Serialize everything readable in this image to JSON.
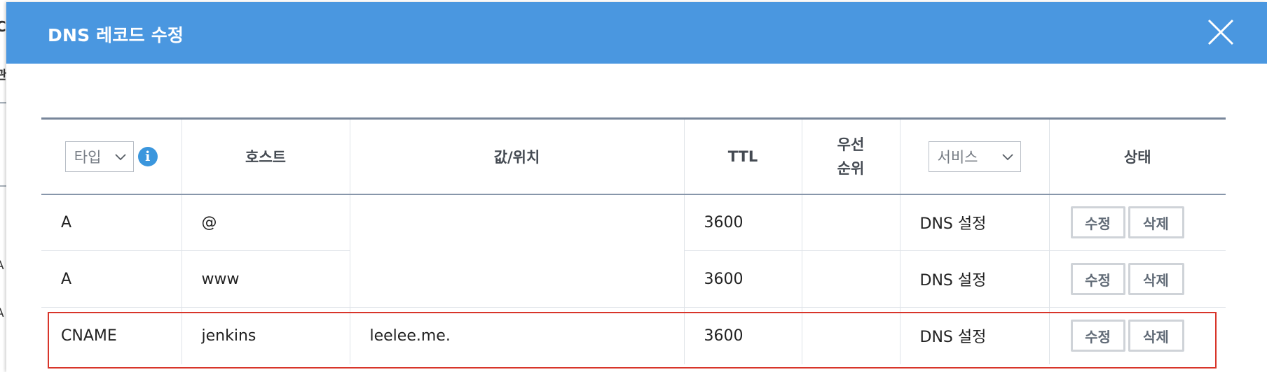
{
  "background": {
    "left_letters": [
      "C",
      "관",
      "A",
      "A"
    ]
  },
  "modal": {
    "title": "DNS 레코드 수정",
    "close_icon": "close-icon",
    "header_color": "#4a97e0"
  },
  "table": {
    "headers": {
      "type_select_value": "타입",
      "info_icon": "i",
      "host": "호스트",
      "value": "값/위치",
      "ttl": "TTL",
      "priority_line1": "우선",
      "priority_line2": "순위",
      "service_select_value": "서비스",
      "status": "상태"
    },
    "rows": [
      {
        "type": "A",
        "host": "@",
        "value": "",
        "ttl": "3600",
        "priority": "",
        "service": "DNS 설정",
        "edit_label": "수정",
        "delete_label": "삭제"
      },
      {
        "type": "A",
        "host": "www",
        "value": "",
        "ttl": "3600",
        "priority": "",
        "service": "DNS 설정",
        "edit_label": "수정",
        "delete_label": "삭제"
      },
      {
        "type": "CNAME",
        "host": "jenkins",
        "value": "leelee.me.",
        "ttl": "3600",
        "priority": "",
        "service": "DNS 설정",
        "edit_label": "수정",
        "delete_label": "삭제"
      }
    ]
  },
  "colors": {
    "highlight_border": "#d8352a",
    "info_icon": "#3a96dd"
  }
}
